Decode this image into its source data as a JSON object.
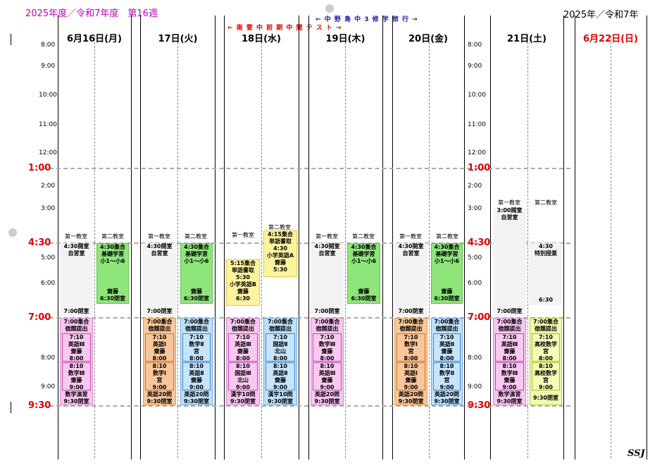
{
  "header": {
    "left_title": "2025年度／令和7年度　第16週",
    "right_title": "2025年／令和7年",
    "trip_note": "← 中 野 島 中 3 修 学 旅 行 →",
    "test_note": "← 南 菅 中 前 期 中 間 テ ス ト →",
    "footer_sign": "SSJ"
  },
  "days": [
    {
      "label": "6月16日(月)"
    },
    {
      "label": "17日(火)"
    },
    {
      "label": "18日(水)"
    },
    {
      "label": "19日(木)"
    },
    {
      "label": "20日(金)"
    },
    {
      "label": "21日(土)"
    },
    {
      "label": "6月22日(日)"
    }
  ],
  "colors": {
    "sunday": "#e00000",
    "big_time": "#e00000",
    "left_title": "#c000c0"
  },
  "times_small": [
    "8:00",
    "9:00",
    "10:00",
    "11:00",
    "12:00",
    "2:00",
    "3:00",
    "5:00",
    "6:00",
    "8:00",
    "9:00"
  ],
  "times_big": [
    "1:00",
    "4:30",
    "7:00",
    "9:30"
  ],
  "rooms": {
    "room1": "第一教室",
    "room2": "第二教室"
  },
  "blocks": {
    "mon_r1": [
      "4:30開室",
      "自習室"
    ],
    "mon_r1_end": "7:00閉室",
    "mon_r2": [
      "4:30集合",
      "基礎学習",
      "小1～小6"
    ],
    "mon_r2_b": [
      "齋藤",
      "6:30閉室"
    ],
    "mon_e1": [
      "7:00集合",
      "宿題提出"
    ],
    "mon_e1a": [
      "7:10",
      "英語Ⅲ",
      "齋藤",
      "8:00"
    ],
    "mon_e1b": [
      "8:10",
      "数学Ⅲ",
      "齋藤",
      "9:00"
    ],
    "mon_e1c": [
      "数学演習",
      "9:30閉室"
    ],
    "tue_r1": [
      "4:30開室",
      "自習室"
    ],
    "tue_r1_end": "7:00閉室",
    "tue_r2": [
      "4:30集合",
      "基礎学習",
      "小1～小6"
    ],
    "tue_r2_b": [
      "齋藤",
      "6:30閉室"
    ],
    "tue_e1": [
      "7:00集合",
      "宿題提出"
    ],
    "tue_e1a": [
      "7:10",
      "英語Ⅰ",
      "齋藤",
      "8:00"
    ],
    "tue_e1b": [
      "8:10",
      "数学Ⅰ",
      "宮",
      "9:00"
    ],
    "tue_e1c": [
      "英語20問",
      "9:30閉室"
    ],
    "tue_e2": [
      "7:00集合",
      "宿題提出"
    ],
    "tue_e2a": [
      "7:10",
      "数学Ⅱ",
      "宮",
      "8:00"
    ],
    "tue_e2b": [
      "8:10",
      "英語Ⅱ",
      "齋藤",
      "9:00"
    ],
    "tue_e2c": [
      "英語20問",
      "9:30閉室"
    ],
    "wed_r1": [
      "5:15集合",
      "単語書取",
      "5:30",
      "小学英語B",
      "齋藤",
      "6:30"
    ],
    "wed_r2": [
      "4:15集合",
      "単語書取",
      "4:30",
      "小学英語A",
      "齋藤",
      "5:30"
    ],
    "wed_e1": [
      "7:00集合",
      "宿題提出"
    ],
    "wed_e1a": [
      "7:10",
      "英語Ⅲ",
      "齋藤",
      "8:00"
    ],
    "wed_e1b": [
      "8:10",
      "国語Ⅲ",
      "北山",
      "9:00"
    ],
    "wed_e1c": [
      "漢字10問",
      "9:30閉室"
    ],
    "wed_e2": [
      "7:00集合",
      "宿題提出"
    ],
    "wed_e2a": [
      "7:10",
      "国語Ⅱ",
      "北山",
      "8:00"
    ],
    "wed_e2b": [
      "8:10",
      "英語Ⅱ",
      "齋藤",
      "9:00"
    ],
    "wed_e2c": [
      "漢字10問",
      "9:30閉室"
    ],
    "thu_r1": [
      "4:30開室",
      "自習室"
    ],
    "thu_r1_end": "7:00閉室",
    "thu_r2": [
      "4:30集合",
      "基礎学習",
      "小1～小6"
    ],
    "thu_r2_b": [
      "齋藤",
      "6:30閉室"
    ],
    "thu_e1": [
      "7:00集合",
      "宿題提出"
    ],
    "thu_e1a": [
      "7:10",
      "数学Ⅲ",
      "齋藤",
      "8:00"
    ],
    "thu_e1b": [
      "8:10",
      "英語Ⅲ",
      "齋藤",
      "9:00"
    ],
    "thu_e1c": [
      "英語20問",
      "9:30閉室"
    ],
    "fri_r1": [
      "4:30開室",
      "自習室"
    ],
    "fri_r1_end": "7:00閉室",
    "fri_r2": [
      "4:30集合",
      "基礎学習",
      "小1～小6"
    ],
    "fri_r2_b": [
      "齋藤",
      "6:30閉室"
    ],
    "fri_e1": [
      "7:00集合",
      "宿題提出"
    ],
    "fri_e1a": [
      "7:10",
      "数学Ⅰ",
      "宮",
      "8:00"
    ],
    "fri_e1b": [
      "8:10",
      "英語Ⅰ",
      "齋藤",
      "9:00"
    ],
    "fri_e1c": [
      "英語20問",
      "9:30閉室"
    ],
    "fri_e2": [
      "7:00集合",
      "宿題提出"
    ],
    "fri_e2a": [
      "7:10",
      "英語Ⅱ",
      "齋藤",
      "8:00"
    ],
    "fri_e2b": [
      "8:10",
      "数学Ⅱ",
      "宮",
      "9:00"
    ],
    "fri_e2c": [
      "英語20問",
      "9:30閉室"
    ],
    "sat_r1": [
      "3:00開室",
      "自習室"
    ],
    "sat_r1_end": "7:00閉室",
    "sat_r2": [
      "4:30",
      "特別授業"
    ],
    "sat_r2_end": "6:30",
    "sat_e1": [
      "7:00集合",
      "宿題提出"
    ],
    "sat_e1a": [
      "7:10",
      "英語Ⅲ",
      "齋藤",
      "8:00"
    ],
    "sat_e1b": [
      "8:10",
      "数学Ⅲ",
      "齋藤",
      "9:00"
    ],
    "sat_e1c": [
      "数学演習",
      "9:30閉室"
    ],
    "sat_e2": [
      "7:00集合",
      "宿題提出"
    ],
    "sat_e2a": [
      "7:10",
      "高校数学",
      "宮",
      "8:00"
    ],
    "sat_e2b": [
      "8:10",
      "高校数学",
      "宮",
      "9:00"
    ],
    "sat_e2c": [
      "9:30閉室"
    ]
  }
}
